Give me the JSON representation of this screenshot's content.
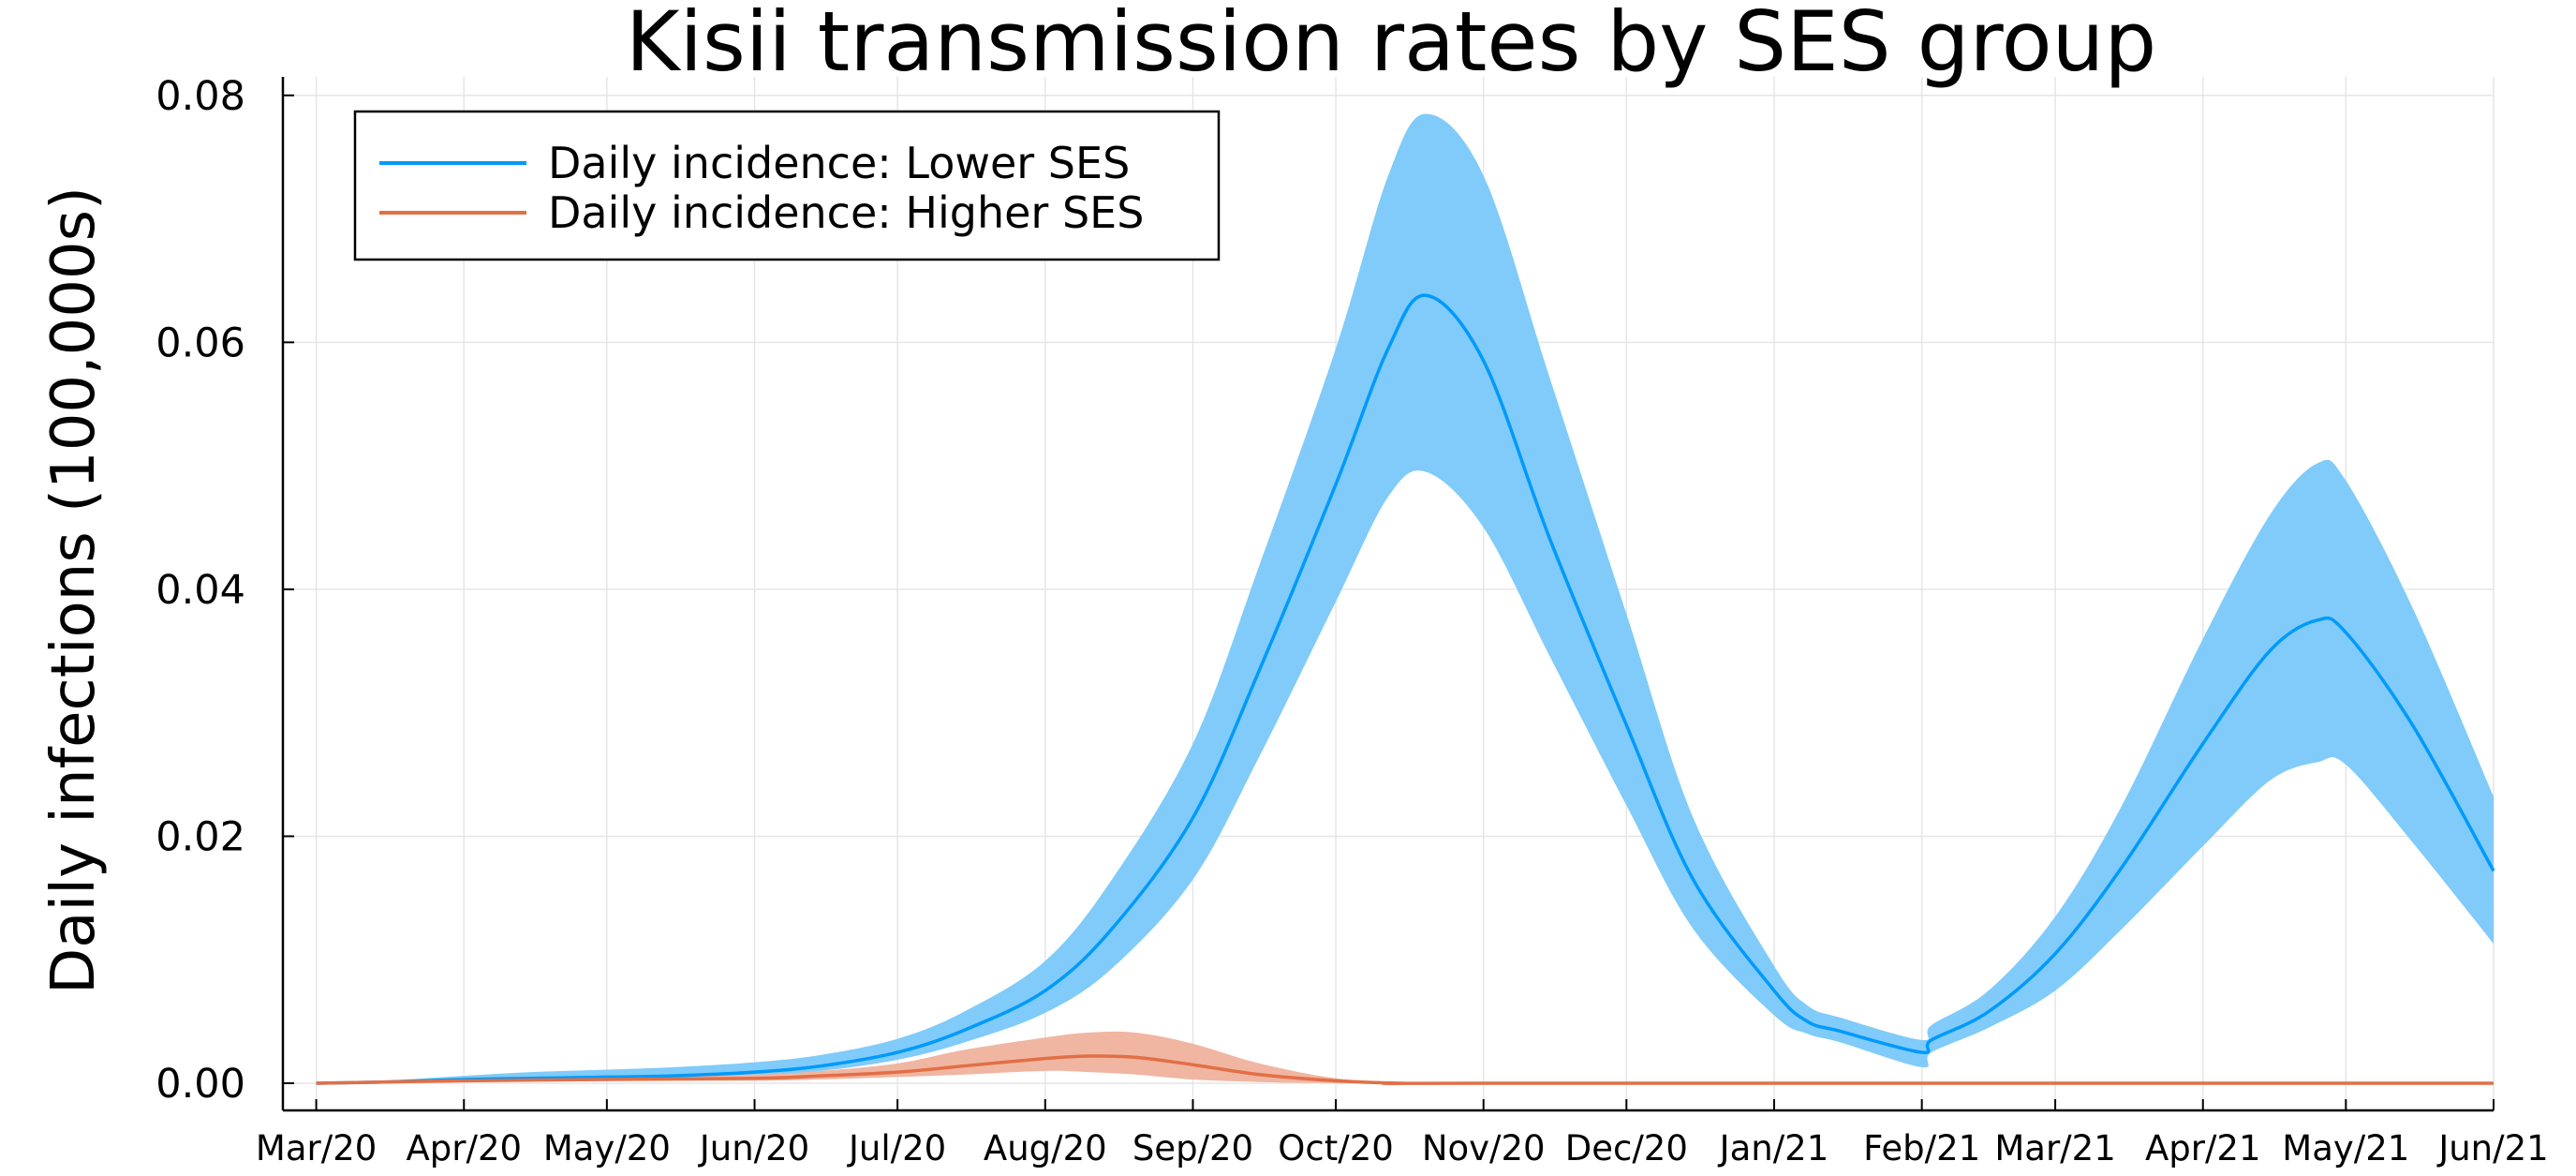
{
  "chart_data": {
    "type": "line",
    "title": "Kisii transmission rates by SES group",
    "xlabel": "",
    "ylabel": "Daily infections (100,000s)",
    "x_tick_labels": [
      "Mar/20",
      "Apr/20",
      "May/20",
      "Jun/20",
      "Jul/20",
      "Aug/20",
      "Sep/20",
      "Oct/20",
      "Nov/20",
      "Dec/20",
      "Jan/21",
      "Feb/21",
      "Mar/21",
      "Apr/21",
      "May/21",
      "Jun/21"
    ],
    "y_tick_labels": [
      "0.00",
      "0.02",
      "0.04",
      "0.06",
      "0.08"
    ],
    "y_ticks": [
      0,
      0.02,
      0.04,
      0.06,
      0.08
    ],
    "xlim": [
      "2020-02-23",
      "2021-06-01"
    ],
    "ylim": [
      -0.0022,
      0.0815
    ],
    "grid": true,
    "legend_position": "top-left",
    "series": [
      {
        "name": "Daily incidence: Lower SES",
        "color": "#009AFA",
        "band_color": "#80CBF9",
        "x": [
          "2020-03-01",
          "2020-03-15",
          "2020-04-01",
          "2020-04-15",
          "2020-05-01",
          "2020-05-15",
          "2020-06-01",
          "2020-06-15",
          "2020-07-01",
          "2020-07-15",
          "2020-08-01",
          "2020-08-15",
          "2020-09-01",
          "2020-09-15",
          "2020-10-01",
          "2020-10-12",
          "2020-10-20",
          "2020-11-01",
          "2020-11-15",
          "2020-12-01",
          "2020-12-15",
          "2021-01-01",
          "2021-01-08",
          "2021-01-15",
          "2021-02-01",
          "2021-02-03",
          "2021-02-15",
          "2021-03-01",
          "2021-03-15",
          "2021-04-01",
          "2021-04-15",
          "2021-04-25",
          "2021-05-01",
          "2021-05-15",
          "2021-06-01"
        ],
        "values": [
          0.0,
          0.0001,
          0.0003,
          0.0004,
          0.0005,
          0.0006,
          0.0009,
          0.0014,
          0.0025,
          0.0043,
          0.0075,
          0.0125,
          0.0215,
          0.0335,
          0.0485,
          0.0595,
          0.0638,
          0.0585,
          0.044,
          0.029,
          0.0165,
          0.0075,
          0.005,
          0.0042,
          0.0025,
          0.0035,
          0.0058,
          0.0105,
          0.0175,
          0.0275,
          0.035,
          0.0375,
          0.0365,
          0.029,
          0.0172
        ],
        "lower": [
          0.0,
          0.0,
          0.0002,
          0.0003,
          0.0003,
          0.0004,
          0.0006,
          0.001,
          0.0019,
          0.0033,
          0.0057,
          0.0093,
          0.0165,
          0.0265,
          0.039,
          0.0475,
          0.0495,
          0.045,
          0.0345,
          0.0225,
          0.0125,
          0.0055,
          0.004,
          0.0033,
          0.0013,
          0.0025,
          0.0045,
          0.0075,
          0.0125,
          0.0192,
          0.0245,
          0.026,
          0.0258,
          0.0195,
          0.0113
        ],
        "upper": [
          0.0,
          0.0002,
          0.0006,
          0.0009,
          0.0011,
          0.0013,
          0.0017,
          0.0023,
          0.0036,
          0.0058,
          0.0099,
          0.0165,
          0.0275,
          0.042,
          0.0595,
          0.0735,
          0.0785,
          0.0735,
          0.057,
          0.038,
          0.0215,
          0.0095,
          0.0063,
          0.0053,
          0.0035,
          0.0047,
          0.0075,
          0.0135,
          0.0225,
          0.036,
          0.046,
          0.0502,
          0.0488,
          0.0385,
          0.0232
        ]
      },
      {
        "name": "Daily incidence: Higher SES",
        "color": "#E26F46",
        "band_color": "#F0B6A2",
        "x": [
          "2020-03-01",
          "2020-04-01",
          "2020-05-01",
          "2020-06-01",
          "2020-06-15",
          "2020-07-01",
          "2020-07-15",
          "2020-08-01",
          "2020-08-10",
          "2020-08-20",
          "2020-09-01",
          "2020-09-15",
          "2020-10-01",
          "2020-10-15",
          "2020-11-01",
          "2021-06-01"
        ],
        "values": [
          0.0,
          0.0002,
          0.0003,
          0.0004,
          0.0006,
          0.0009,
          0.0014,
          0.002,
          0.0022,
          0.0021,
          0.0015,
          0.0007,
          0.0002,
          0.0,
          0.0,
          0.0
        ],
        "lower": [
          0.0,
          0.0001,
          0.0002,
          0.0002,
          0.0003,
          0.0005,
          0.0007,
          0.001,
          0.0009,
          0.0007,
          0.0003,
          0.0001,
          0.0,
          0.0,
          0.0,
          0.0
        ],
        "upper": [
          0.0,
          0.0003,
          0.0005,
          0.0007,
          0.001,
          0.0016,
          0.0027,
          0.0037,
          0.0041,
          0.0041,
          0.0032,
          0.0016,
          0.0004,
          0.0001,
          0.0,
          0.0
        ]
      }
    ]
  }
}
